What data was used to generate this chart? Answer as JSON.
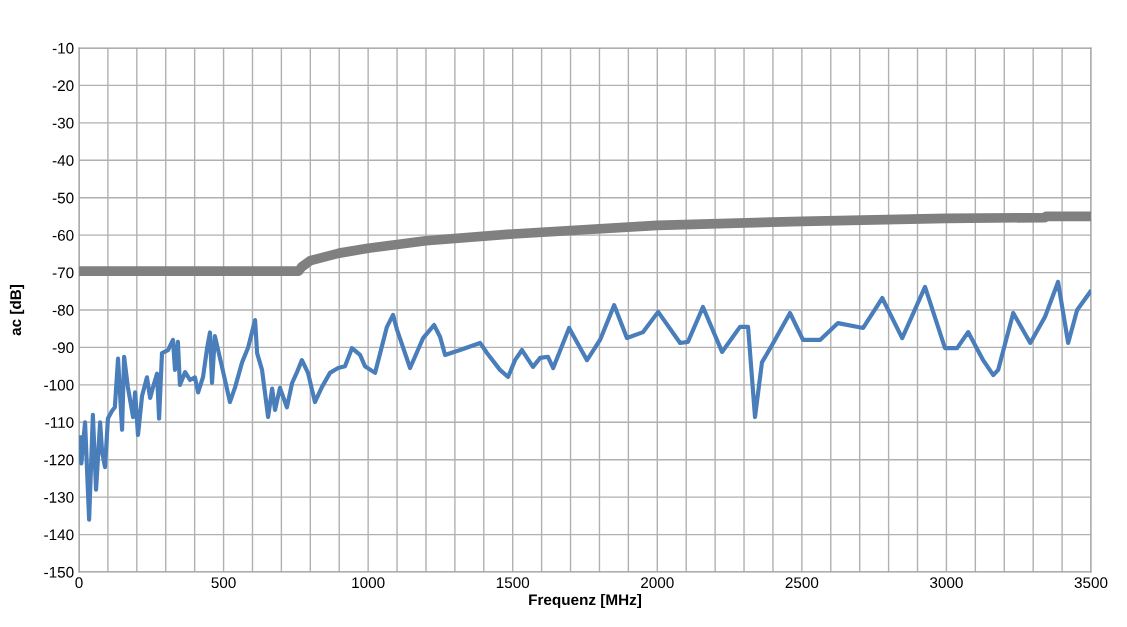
{
  "chart_data": {
    "type": "line",
    "xlabel": "Frequenz [MHz]",
    "ylabel": "ac [dB]",
    "xlim": [
      0,
      3500
    ],
    "ylim": [
      -150,
      -10
    ],
    "xticks": [
      0,
      {
        "value": 100,
        "label": null
      },
      {
        "value": 200,
        "label": null
      },
      {
        "value": 300,
        "label": null
      },
      {
        "value": 400,
        "label": null
      },
      500,
      {
        "value": 600,
        "label": null
      },
      {
        "value": 700,
        "label": null
      },
      {
        "value": 800,
        "label": null
      },
      {
        "value": 900,
        "label": null
      },
      1000,
      {
        "value": 1100,
        "label": null
      },
      {
        "value": 1200,
        "label": null
      },
      {
        "value": 1300,
        "label": null
      },
      {
        "value": 1400,
        "label": null
      },
      1500,
      {
        "value": 1600,
        "label": null
      },
      {
        "value": 1700,
        "label": null
      },
      {
        "value": 1800,
        "label": null
      },
      {
        "value": 1900,
        "label": null
      },
      2000,
      {
        "value": 2100,
        "label": null
      },
      {
        "value": 2200,
        "label": null
      },
      {
        "value": 2300,
        "label": null
      },
      {
        "value": 2400,
        "label": null
      },
      2500,
      {
        "value": 2600,
        "label": null
      },
      {
        "value": 2700,
        "label": null
      },
      {
        "value": 2800,
        "label": null
      },
      {
        "value": 2900,
        "label": null
      },
      3000,
      {
        "value": 3100,
        "label": null
      },
      {
        "value": 3200,
        "label": null
      },
      {
        "value": 3300,
        "label": null
      },
      {
        "value": 3400,
        "label": null
      },
      3500
    ],
    "yticks": [
      -150,
      -140,
      -130,
      -120,
      -110,
      -100,
      -90,
      -80,
      -70,
      -60,
      -50,
      -40,
      -30,
      -20,
      -10
    ],
    "grid": true,
    "legend": false,
    "marker": "none",
    "line_style": "solid",
    "series": [
      {
        "color": "#808080",
        "x": [
          0,
          760,
          770,
          800,
          900,
          1000,
          1200,
          1500,
          2000,
          2500,
          3000,
          3340,
          3345,
          3500
        ],
        "values": [
          -69.6,
          -69.6,
          -68.5,
          -66.8,
          -64.8,
          -63.5,
          -61.5,
          -59.7,
          -57.4,
          -56.3,
          -55.5,
          -55.3,
          -55,
          -55
        ]
      },
      {
        "color": "#4a7ebb",
        "x": [
          3,
          8,
          21,
          35,
          48,
          59,
          73,
          80,
          90,
          100,
          114,
          124,
          135,
          149,
          156,
          169,
          187,
          194,
          204,
          218,
          235,
          246,
          256,
          270,
          277,
          287,
          308,
          325,
          332,
          342,
          349,
          367,
          384,
          401,
          412,
          429,
          443,
          453,
          460,
          470,
          494,
          522,
          540,
          564,
          585,
          598,
          609,
          616,
          633,
          643,
          654,
          668,
          678,
          695,
          719,
          737,
          754,
          771,
          792,
          816,
          840,
          868,
          896,
          920,
          944,
          972,
          989,
          1024,
          1065,
          1086,
          1100,
          1145,
          1190,
          1228,
          1249,
          1266,
          1318,
          1387,
          1411,
          1456,
          1484,
          1508,
          1532,
          1570,
          1595,
          1622,
          1640,
          1695,
          1757,
          1802,
          1851,
          1895,
          1951,
          2003,
          2079,
          2106,
          2158,
          2224,
          2286,
          2314,
          2338,
          2362,
          2401,
          2459,
          2504,
          2563,
          2625,
          2712,
          2778,
          2847,
          2926,
          2995,
          3037,
          3075,
          3127,
          3162,
          3179,
          3231,
          3290,
          3341,
          3386,
          3421,
          3452,
          3497
        ],
        "values": [
          -114,
          -121,
          -110,
          -136,
          -108,
          -128,
          -110,
          -118,
          -122,
          -109,
          -107,
          -106,
          -93,
          -112,
          -92.5,
          -100.6,
          -108.6,
          -102,
          -113.4,
          -103,
          -98,
          -103.5,
          -100.6,
          -97,
          -109,
          -91.5,
          -90.7,
          -88,
          -96,
          -88.5,
          -100,
          -96.6,
          -98.7,
          -98,
          -102,
          -97.9,
          -90.2,
          -86,
          -99.5,
          -87,
          -95,
          -104.6,
          -100.6,
          -94,
          -90,
          -86,
          -82.7,
          -91.5,
          -96,
          -102,
          -108.6,
          -101,
          -106.7,
          -100.8,
          -106,
          -99.5,
          -96.6,
          -93.4,
          -96.8,
          -104.6,
          -100.6,
          -96.8,
          -95.5,
          -95,
          -90.2,
          -92,
          -95,
          -96.8,
          -84.5,
          -81.3,
          -85.3,
          -95.5,
          -87.5,
          -84,
          -87.2,
          -92,
          -90.7,
          -88.8,
          -91.5,
          -96,
          -97.9,
          -93.4,
          -90.7,
          -95.2,
          -92.8,
          -92.5,
          -95.5,
          -84.8,
          -93.4,
          -88,
          -78.7,
          -87.5,
          -85.9,
          -80.5,
          -88.8,
          -88.5,
          -79.2,
          -91.2,
          -84.5,
          -84.5,
          -108.6,
          -94,
          -88.8,
          -80.8,
          -88,
          -88,
          -83.5,
          -84.8,
          -76.8,
          -87.5,
          -73.8,
          -90.2,
          -90.2,
          -85.9,
          -93.4,
          -97.4,
          -96,
          -80.8,
          -88.8,
          -81.8,
          -72.5,
          -88.8,
          -80,
          -75.2
        ]
      }
    ]
  }
}
